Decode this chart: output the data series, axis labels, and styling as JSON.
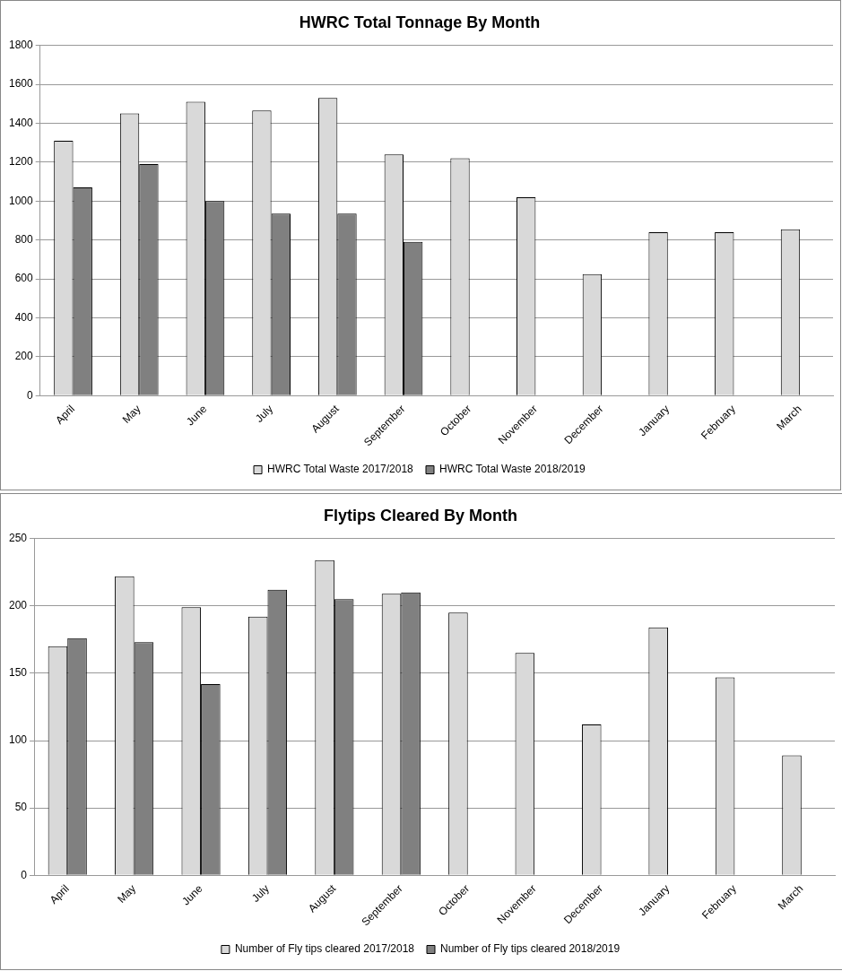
{
  "chart_data": [
    {
      "type": "bar",
      "title": "HWRC Total Tonnage By Month",
      "categories": [
        "April",
        "May",
        "June",
        "July",
        "August",
        "September",
        "October",
        "November",
        "December",
        "January",
        "February",
        "March"
      ],
      "series": [
        {
          "name": "HWRC Total Waste 2017/2018",
          "color": "#d9d9d9",
          "values": [
            1310,
            1450,
            1510,
            1465,
            1530,
            1240,
            1220,
            1020,
            625,
            840,
            840,
            855
          ]
        },
        {
          "name": "HWRC Total Waste 2018/2019",
          "color": "#808080",
          "values": [
            1070,
            1190,
            1000,
            935,
            935,
            790,
            null,
            null,
            null,
            null,
            null,
            null
          ]
        }
      ],
      "ylim": [
        0,
        1800
      ],
      "yticks": [
        0,
        200,
        400,
        600,
        800,
        1000,
        1200,
        1400,
        1600,
        1800
      ],
      "grid": "y",
      "legend": "bottom"
    },
    {
      "type": "bar",
      "title": "Flytips Cleared By Month",
      "categories": [
        "April",
        "May",
        "June",
        "July",
        "August",
        "September",
        "October",
        "November",
        "December",
        "January",
        "February",
        "March"
      ],
      "series": [
        {
          "name": "Number of Fly tips cleared 2017/2018",
          "color": "#d9d9d9",
          "values": [
            170,
            222,
            199,
            192,
            234,
            209,
            195,
            165,
            112,
            184,
            147,
            89
          ]
        },
        {
          "name": "Number of Fly tips cleared 2018/2019",
          "color": "#808080",
          "values": [
            176,
            173,
            142,
            212,
            205,
            210,
            null,
            null,
            null,
            null,
            null,
            null
          ]
        }
      ],
      "ylim": [
        0,
        250
      ],
      "yticks": [
        0,
        50,
        100,
        150,
        200,
        250
      ],
      "grid": "y",
      "legend": "bottom"
    }
  ]
}
